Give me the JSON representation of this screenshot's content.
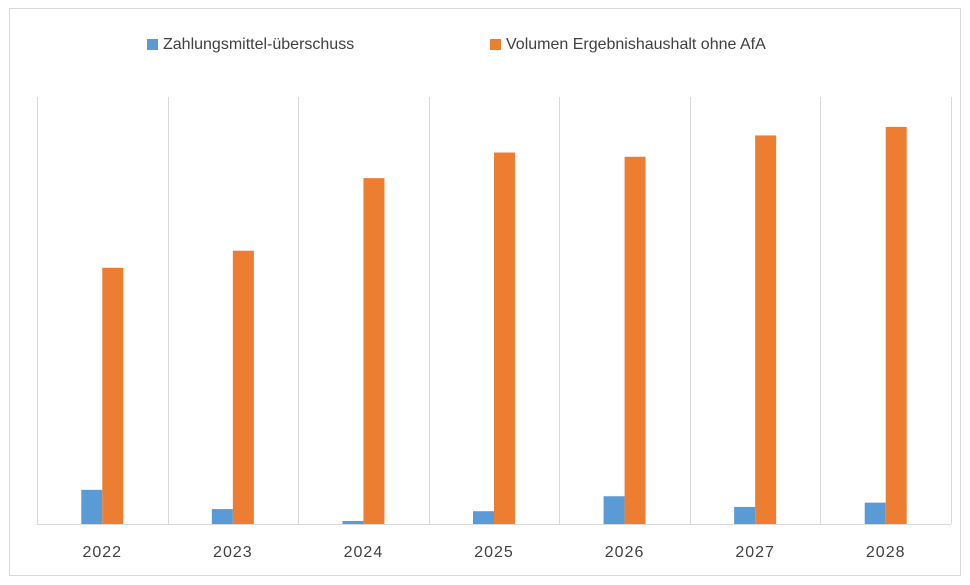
{
  "chart_data": {
    "type": "bar",
    "categories": [
      "2022",
      "2023",
      "2024",
      "2025",
      "2026",
      "2027",
      "2028"
    ],
    "series": [
      {
        "name": "Zahlungsmittel-überschuss",
        "color": "#5b9bd5",
        "values": [
          8,
          3.5,
          0.7,
          3,
          6.5,
          4,
          5
        ]
      },
      {
        "name": "Volumen Ergebnishaushalt ohne AfA",
        "color": "#ed7d31",
        "values": [
          60,
          64,
          81,
          87,
          86,
          91,
          93
        ]
      }
    ],
    "ylim": [
      0,
      100
    ],
    "legend": "top"
  }
}
